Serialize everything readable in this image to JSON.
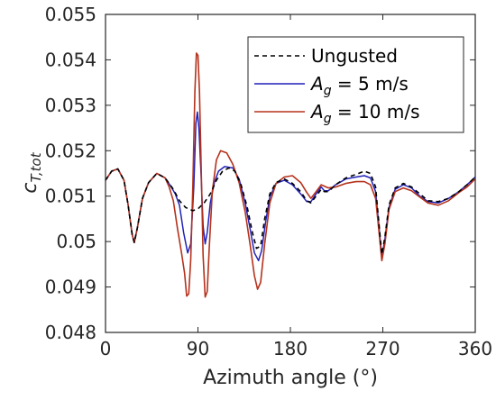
{
  "chart_data": {
    "type": "line",
    "xlabel": "Azimuth angle (°)",
    "ylabel_main": "c",
    "ylabel_sub": "T,tot",
    "xlim": [
      0,
      360
    ],
    "ylim": [
      0.048,
      0.055
    ],
    "xticks": [
      0,
      90,
      180,
      270,
      360
    ],
    "xtick_labels": [
      "0",
      "90",
      "180",
      "270",
      "360"
    ],
    "yticks": [
      0.048,
      0.049,
      0.05,
      0.051,
      0.052,
      0.053,
      0.054,
      0.055
    ],
    "ytick_labels": [
      "0.048",
      "0.049",
      "0.05",
      "0.051",
      "0.052",
      "0.053",
      "0.054",
      "0.055"
    ],
    "grid": false,
    "legend_position": "top-right",
    "series": [
      {
        "name": "Ungusted",
        "legend_main": "Ungusted",
        "legend_sub": "",
        "legend_suffix": "",
        "color": "#000000",
        "dash": "5,4",
        "width": 1.6,
        "points": [
          [
            0,
            0.05135
          ],
          [
            6,
            0.05155
          ],
          [
            12,
            0.0516
          ],
          [
            18,
            0.05135
          ],
          [
            22,
            0.0508
          ],
          [
            26,
            0.05015
          ],
          [
            28,
            0.04998
          ],
          [
            31,
            0.0503
          ],
          [
            36,
            0.05095
          ],
          [
            42,
            0.0513
          ],
          [
            50,
            0.0515
          ],
          [
            58,
            0.0514
          ],
          [
            66,
            0.05115
          ],
          [
            72,
            0.0509
          ],
          [
            78,
            0.05075
          ],
          [
            85,
            0.05068
          ],
          [
            90,
            0.05072
          ],
          [
            96,
            0.05085
          ],
          [
            102,
            0.05105
          ],
          [
            108,
            0.05135
          ],
          [
            114,
            0.05155
          ],
          [
            120,
            0.05162
          ],
          [
            126,
            0.05155
          ],
          [
            132,
            0.05125
          ],
          [
            138,
            0.05075
          ],
          [
            143,
            0.0502
          ],
          [
            147,
            0.04985
          ],
          [
            151,
            0.0499
          ],
          [
            155,
            0.0505
          ],
          [
            160,
            0.05105
          ],
          [
            166,
            0.0513
          ],
          [
            174,
            0.05138
          ],
          [
            182,
            0.05128
          ],
          [
            190,
            0.0511
          ],
          [
            196,
            0.0509
          ],
          [
            200,
            0.05085
          ],
          [
            205,
            0.051
          ],
          [
            210,
            0.05115
          ],
          [
            213,
            0.0511
          ],
          [
            217,
            0.0511
          ],
          [
            224,
            0.05125
          ],
          [
            234,
            0.0514
          ],
          [
            244,
            0.05148
          ],
          [
            252,
            0.05155
          ],
          [
            258,
            0.0515
          ],
          [
            263,
            0.0512
          ],
          [
            267,
            0.0502
          ],
          [
            269,
            0.04972
          ],
          [
            272,
            0.0501
          ],
          [
            276,
            0.0508
          ],
          [
            282,
            0.05118
          ],
          [
            290,
            0.05128
          ],
          [
            298,
            0.0512
          ],
          [
            306,
            0.05105
          ],
          [
            314,
            0.0509
          ],
          [
            324,
            0.05088
          ],
          [
            334,
            0.05095
          ],
          [
            344,
            0.0511
          ],
          [
            352,
            0.05125
          ],
          [
            360,
            0.05142
          ]
        ]
      },
      {
        "name": "A_g = 5 m/s",
        "legend_main": "A",
        "legend_sub": "g",
        "legend_suffix": " = 5 m/s",
        "color": "#2121b8",
        "dash": "",
        "width": 1.5,
        "points": [
          [
            0,
            0.05135
          ],
          [
            6,
            0.05155
          ],
          [
            12,
            0.0516
          ],
          [
            18,
            0.05135
          ],
          [
            22,
            0.0508
          ],
          [
            26,
            0.05015
          ],
          [
            28,
            0.04998
          ],
          [
            31,
            0.0503
          ],
          [
            36,
            0.05095
          ],
          [
            42,
            0.0513
          ],
          [
            50,
            0.0515
          ],
          [
            58,
            0.0514
          ],
          [
            64,
            0.0512
          ],
          [
            68,
            0.05105
          ],
          [
            72,
            0.0508
          ],
          [
            76,
            0.0502
          ],
          [
            80,
            0.04975
          ],
          [
            83,
            0.04995
          ],
          [
            86,
            0.0512
          ],
          [
            88,
            0.0526
          ],
          [
            89.5,
            0.05285
          ],
          [
            91,
            0.0525
          ],
          [
            93,
            0.0515
          ],
          [
            95,
            0.05035
          ],
          [
            97,
            0.04995
          ],
          [
            99,
            0.0502
          ],
          [
            102,
            0.05085
          ],
          [
            106,
            0.0513
          ],
          [
            110,
            0.05155
          ],
          [
            116,
            0.05165
          ],
          [
            124,
            0.05162
          ],
          [
            130,
            0.05138
          ],
          [
            136,
            0.05085
          ],
          [
            141,
            0.05025
          ],
          [
            145,
            0.04975
          ],
          [
            149,
            0.04958
          ],
          [
            152,
            0.0498
          ],
          [
            156,
            0.05045
          ],
          [
            160,
            0.05098
          ],
          [
            166,
            0.05128
          ],
          [
            174,
            0.05135
          ],
          [
            182,
            0.05125
          ],
          [
            190,
            0.05105
          ],
          [
            196,
            0.05088
          ],
          [
            200,
            0.05088
          ],
          [
            205,
            0.05105
          ],
          [
            210,
            0.0512
          ],
          [
            213,
            0.05112
          ],
          [
            217,
            0.05112
          ],
          [
            224,
            0.05125
          ],
          [
            234,
            0.05138
          ],
          [
            244,
            0.05142
          ],
          [
            252,
            0.05145
          ],
          [
            258,
            0.0514
          ],
          [
            263,
            0.0511
          ],
          [
            267,
            0.05015
          ],
          [
            269,
            0.04965
          ],
          [
            272,
            0.05005
          ],
          [
            276,
            0.05075
          ],
          [
            282,
            0.05115
          ],
          [
            290,
            0.05125
          ],
          [
            298,
            0.05118
          ],
          [
            306,
            0.051
          ],
          [
            314,
            0.05088
          ],
          [
            324,
            0.05085
          ],
          [
            334,
            0.05095
          ],
          [
            344,
            0.0511
          ],
          [
            352,
            0.05125
          ],
          [
            360,
            0.05142
          ]
        ]
      },
      {
        "name": "A_g = 10 m/s",
        "legend_main": "A",
        "legend_sub": "g",
        "legend_suffix": " = 10 m/s",
        "color": "#b5321c",
        "dash": "",
        "width": 1.6,
        "points": [
          [
            0,
            0.05135
          ],
          [
            6,
            0.05155
          ],
          [
            12,
            0.0516
          ],
          [
            18,
            0.05135
          ],
          [
            22,
            0.0508
          ],
          [
            26,
            0.05015
          ],
          [
            28,
            0.04998
          ],
          [
            31,
            0.0503
          ],
          [
            36,
            0.05095
          ],
          [
            42,
            0.0513
          ],
          [
            50,
            0.0515
          ],
          [
            58,
            0.0514
          ],
          [
            62,
            0.0512
          ],
          [
            66,
            0.0509
          ],
          [
            70,
            0.0503
          ],
          [
            74,
            0.04975
          ],
          [
            77,
            0.0493
          ],
          [
            79,
            0.0488
          ],
          [
            81,
            0.04885
          ],
          [
            83,
            0.0496
          ],
          [
            85,
            0.0512
          ],
          [
            87,
            0.0533
          ],
          [
            88.5,
            0.05415
          ],
          [
            90,
            0.0541
          ],
          [
            91.5,
            0.0533
          ],
          [
            93,
            0.0518
          ],
          [
            95,
            0.0497
          ],
          [
            97,
            0.04878
          ],
          [
            99,
            0.0489
          ],
          [
            101,
            0.04985
          ],
          [
            104,
            0.0511
          ],
          [
            108,
            0.0518
          ],
          [
            112,
            0.052
          ],
          [
            118,
            0.05195
          ],
          [
            124,
            0.0517
          ],
          [
            130,
            0.0513
          ],
          [
            136,
            0.05065
          ],
          [
            141,
            0.0499
          ],
          [
            145,
            0.04925
          ],
          [
            148,
            0.04895
          ],
          [
            151,
            0.0491
          ],
          [
            155,
            0.04995
          ],
          [
            160,
            0.05085
          ],
          [
            166,
            0.05128
          ],
          [
            174,
            0.05142
          ],
          [
            182,
            0.05145
          ],
          [
            190,
            0.0513
          ],
          [
            196,
            0.05108
          ],
          [
            200,
            0.05095
          ],
          [
            205,
            0.0511
          ],
          [
            210,
            0.05125
          ],
          [
            213,
            0.05122
          ],
          [
            217,
            0.05118
          ],
          [
            224,
            0.0512
          ],
          [
            234,
            0.05128
          ],
          [
            244,
            0.05132
          ],
          [
            252,
            0.05132
          ],
          [
            258,
            0.05125
          ],
          [
            263,
            0.05095
          ],
          [
            267,
            0.05005
          ],
          [
            269,
            0.04958
          ],
          [
            272,
            0.04995
          ],
          [
            276,
            0.0507
          ],
          [
            282,
            0.0511
          ],
          [
            290,
            0.05118
          ],
          [
            298,
            0.05112
          ],
          [
            306,
            0.05098
          ],
          [
            314,
            0.05085
          ],
          [
            324,
            0.0508
          ],
          [
            334,
            0.0509
          ],
          [
            344,
            0.05108
          ],
          [
            352,
            0.0512
          ],
          [
            360,
            0.05138
          ]
        ]
      }
    ]
  }
}
